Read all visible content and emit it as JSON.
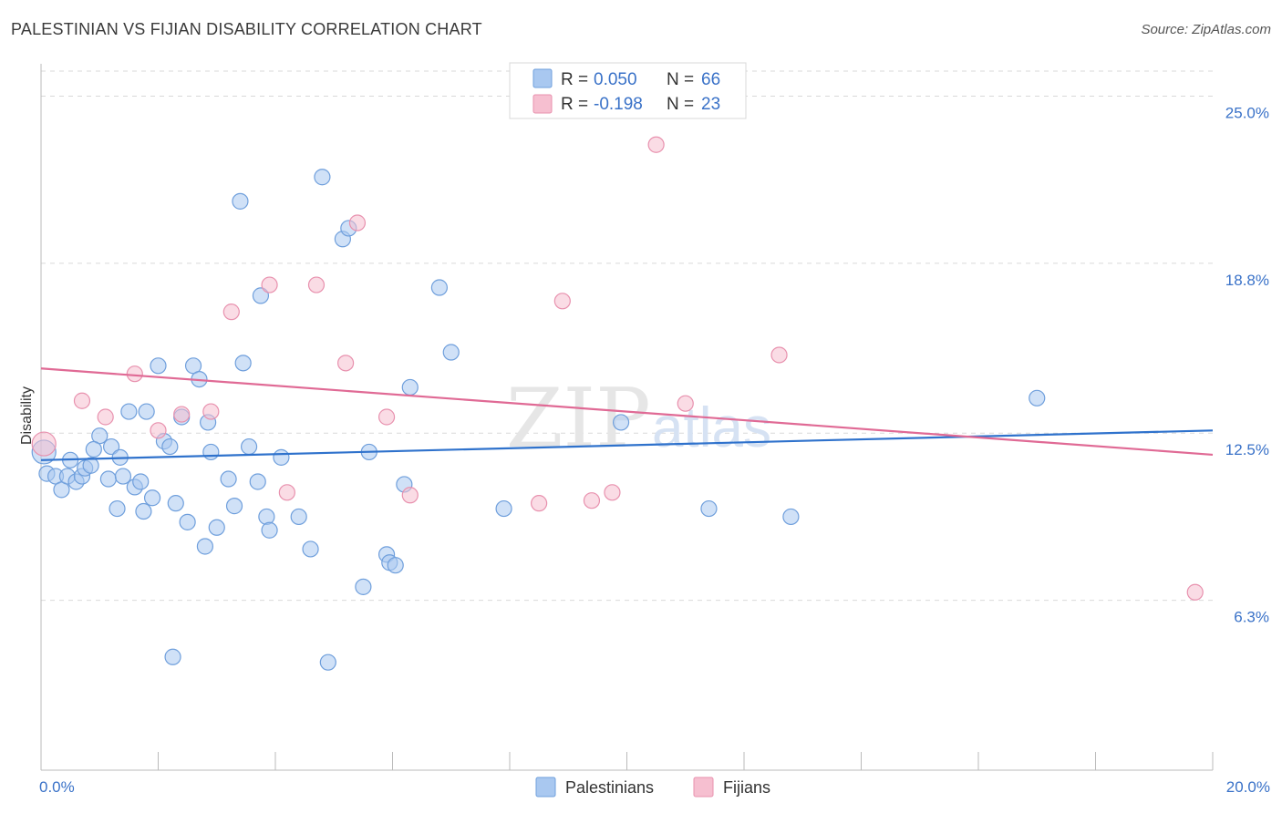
{
  "title": "PALESTINIAN VS FIJIAN DISABILITY CORRELATION CHART",
  "source": "Source: ZipAtlas.com",
  "watermark": {
    "zip": "ZIP",
    "atlas": "atlas"
  },
  "legend": {
    "rows": [
      {
        "r_label": "R = ",
        "r_value": "0.050",
        "n_label": "N = ",
        "n_value": "66"
      },
      {
        "r_label": "R = ",
        "r_value": "-0.198",
        "n_label": "N = ",
        "n_value": "23"
      }
    ]
  },
  "colors": {
    "blue_fill": "#a9c8f0",
    "blue_stroke": "#6f9fdc",
    "blue_line": "#2f72cc",
    "pink_fill": "#f6bfd0",
    "pink_stroke": "#e891ae",
    "pink_line": "#e06a95",
    "grid": "#d9d9d9",
    "axis_text": "#3a72c8"
  },
  "chart_data": {
    "type": "scatter",
    "title": "PALESTINIAN VS FIJIAN DISABILITY CORRELATION CHART",
    "xlabel": "",
    "ylabel": "Disability",
    "xlim": [
      0,
      20
    ],
    "ylim": [
      0,
      26.2
    ],
    "x_tick_labels": [
      "0.0%",
      "20.0%"
    ],
    "y_ticks": [
      6.3,
      12.5,
      18.8,
      25.0
    ],
    "y_tick_labels": [
      "6.3%",
      "12.5%",
      "18.8%",
      "25.0%"
    ],
    "grid": true,
    "legend_placement": "top-center",
    "series": [
      {
        "name": "Palestinians",
        "color": "#a9c8f0",
        "trend": {
          "x": [
            0,
            20
          ],
          "y": [
            11.5,
            12.6
          ]
        },
        "points": [
          [
            0.05,
            11.8
          ],
          [
            0.1,
            11.0
          ],
          [
            0.25,
            10.9
          ],
          [
            0.35,
            10.4
          ],
          [
            0.45,
            10.9
          ],
          [
            0.5,
            11.5
          ],
          [
            0.6,
            10.7
          ],
          [
            0.7,
            10.9
          ],
          [
            0.75,
            11.2
          ],
          [
            0.85,
            11.3
          ],
          [
            1.0,
            12.4
          ],
          [
            0.9,
            11.9
          ],
          [
            1.15,
            10.8
          ],
          [
            1.2,
            12.0
          ],
          [
            1.3,
            9.7
          ],
          [
            1.35,
            11.6
          ],
          [
            1.4,
            10.9
          ],
          [
            1.5,
            13.3
          ],
          [
            1.6,
            10.5
          ],
          [
            1.7,
            10.7
          ],
          [
            1.75,
            9.6
          ],
          [
            1.8,
            13.3
          ],
          [
            1.9,
            10.1
          ],
          [
            2.0,
            15.0
          ],
          [
            2.1,
            12.2
          ],
          [
            2.2,
            12.0
          ],
          [
            2.3,
            9.9
          ],
          [
            2.4,
            13.1
          ],
          [
            2.5,
            9.2
          ],
          [
            2.6,
            15.0
          ],
          [
            2.7,
            14.5
          ],
          [
            2.8,
            8.3
          ],
          [
            2.85,
            12.9
          ],
          [
            2.9,
            11.8
          ],
          [
            3.0,
            9.0
          ],
          [
            3.2,
            10.8
          ],
          [
            3.3,
            9.8
          ],
          [
            3.4,
            21.1
          ],
          [
            3.45,
            15.1
          ],
          [
            3.55,
            12.0
          ],
          [
            3.7,
            10.7
          ],
          [
            3.75,
            17.6
          ],
          [
            3.85,
            9.4
          ],
          [
            3.9,
            8.9
          ],
          [
            4.1,
            11.6
          ],
          [
            4.4,
            9.4
          ],
          [
            4.6,
            8.2
          ],
          [
            4.8,
            22.0
          ],
          [
            4.9,
            4.0
          ],
          [
            5.15,
            19.7
          ],
          [
            5.25,
            20.1
          ],
          [
            5.5,
            6.8
          ],
          [
            5.6,
            11.8
          ],
          [
            5.9,
            8.0
          ],
          [
            5.95,
            7.7
          ],
          [
            6.05,
            7.6
          ],
          [
            6.2,
            10.6
          ],
          [
            6.3,
            14.2
          ],
          [
            6.8,
            17.9
          ],
          [
            7.0,
            15.5
          ],
          [
            7.9,
            9.7
          ],
          [
            9.9,
            12.9
          ],
          [
            11.4,
            9.7
          ],
          [
            12.8,
            9.4
          ],
          [
            17.0,
            13.8
          ],
          [
            2.25,
            4.2
          ]
        ]
      },
      {
        "name": "Fijians",
        "color": "#f6bfd0",
        "trend": {
          "x": [
            0,
            20
          ],
          "y": [
            14.9,
            11.7
          ]
        },
        "points": [
          [
            0.05,
            12.1
          ],
          [
            0.7,
            13.7
          ],
          [
            1.1,
            13.1
          ],
          [
            1.6,
            14.7
          ],
          [
            2.0,
            12.6
          ],
          [
            2.4,
            13.2
          ],
          [
            2.9,
            13.3
          ],
          [
            3.25,
            17.0
          ],
          [
            3.9,
            18.0
          ],
          [
            4.2,
            10.3
          ],
          [
            4.7,
            18.0
          ],
          [
            5.2,
            15.1
          ],
          [
            5.4,
            20.3
          ],
          [
            5.9,
            13.1
          ],
          [
            6.3,
            10.2
          ],
          [
            8.5,
            9.9
          ],
          [
            8.9,
            17.4
          ],
          [
            9.4,
            10.0
          ],
          [
            9.75,
            10.3
          ],
          [
            10.5,
            23.2
          ],
          [
            11.0,
            13.6
          ],
          [
            12.6,
            15.4
          ],
          [
            19.7,
            6.6
          ]
        ]
      }
    ]
  },
  "bottom_legend": {
    "items": [
      "Palestinians",
      "Fijians"
    ]
  }
}
